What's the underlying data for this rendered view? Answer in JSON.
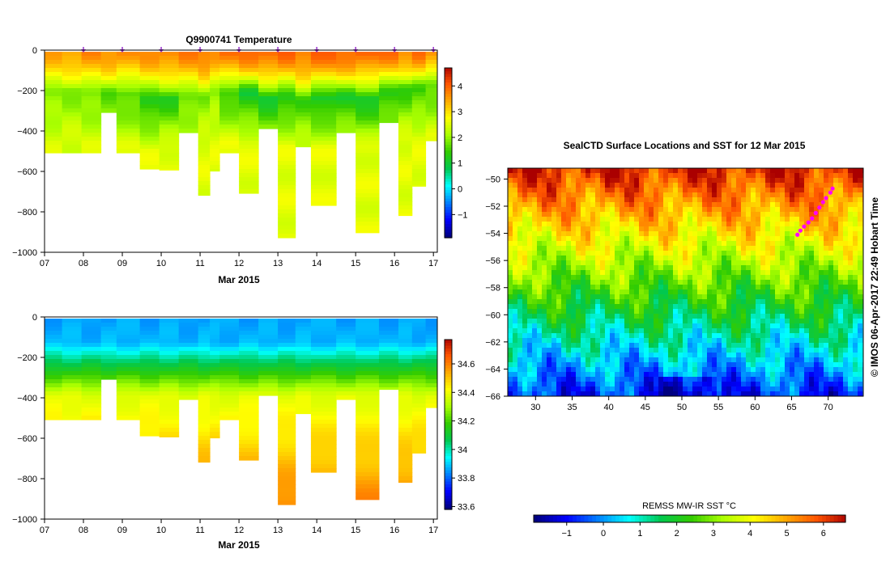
{
  "chart_data": [
    {
      "id": "temperature-section",
      "type": "heatmap",
      "title": "Q9900741  Temperature",
      "xlabel": "Mar 2015",
      "x_tick_labels": [
        "07",
        "08",
        "09",
        "10",
        "11",
        "12",
        "13",
        "14",
        "15",
        "16",
        "17"
      ],
      "xlim": [
        7,
        17.1
      ],
      "ylim": [
        -1000,
        0
      ],
      "y_ticks": [
        0,
        -200,
        -400,
        -600,
        -800,
        -1000
      ],
      "colorbar": {
        "min": -1.9,
        "max": 4.7,
        "ticks": [
          -1,
          0,
          1,
          2,
          3,
          4
        ]
      },
      "colormap": [
        "#00007f",
        "#0000ff",
        "#0080ff",
        "#00ffff",
        "#00c850",
        "#33cc00",
        "#aaff00",
        "#ffff00",
        "#ffaa00",
        "#ff5500",
        "#aa0000"
      ],
      "profile_markers_x": [
        8.0,
        9.0,
        10.0,
        11.0,
        12.0,
        13.0,
        14.0,
        15.0,
        16.0,
        17.0
      ],
      "marker_color": "#9932cc",
      "profiles": [
        {
          "x0": 7.0,
          "x1": 7.45,
          "max_depth": 500,
          "T_surface": 3.4,
          "T_min": 1.8,
          "T_min_depth": 200,
          "T_deep": 2.4
        },
        {
          "x0": 7.45,
          "x1": 7.95,
          "max_depth": 500,
          "T_surface": 3.5,
          "T_min": 1.8,
          "T_min_depth": 190,
          "T_deep": 2.4
        },
        {
          "x0": 7.95,
          "x1": 8.45,
          "max_depth": 500,
          "T_surface": 3.6,
          "T_min": 1.7,
          "T_min_depth": 200,
          "T_deep": 2.4
        },
        {
          "x0": 8.45,
          "x1": 8.85,
          "max_depth": 300,
          "T_surface": 3.6,
          "T_min": 1.6,
          "T_min_depth": 200,
          "T_deep": 2.2
        },
        {
          "x0": 8.85,
          "x1": 9.45,
          "max_depth": 500,
          "T_surface": 3.5,
          "T_min": 1.5,
          "T_min_depth": 210,
          "T_deep": 2.4
        },
        {
          "x0": 9.45,
          "x1": 9.95,
          "max_depth": 580,
          "T_surface": 3.6,
          "T_min": 1.1,
          "T_min_depth": 240,
          "T_deep": 2.5
        },
        {
          "x0": 9.95,
          "x1": 10.45,
          "max_depth": 585,
          "T_surface": 3.7,
          "T_min": 1.2,
          "T_min_depth": 230,
          "T_deep": 2.5
        },
        {
          "x0": 10.45,
          "x1": 10.95,
          "max_depth": 400,
          "T_surface": 3.7,
          "T_min": 1.6,
          "T_min_depth": 220,
          "T_deep": 2.4
        },
        {
          "x0": 10.95,
          "x1": 11.25,
          "max_depth": 710,
          "T_surface": 3.8,
          "T_min": 1.8,
          "T_min_depth": 220,
          "T_deep": 2.5
        },
        {
          "x0": 11.25,
          "x1": 11.5,
          "max_depth": 590,
          "T_surface": 3.5,
          "T_min": 1.9,
          "T_min_depth": 200,
          "T_deep": 2.5
        },
        {
          "x0": 11.5,
          "x1": 12.0,
          "max_depth": 500,
          "T_surface": 3.8,
          "T_min": 1.3,
          "T_min_depth": 200,
          "T_deep": 2.5
        },
        {
          "x0": 12.0,
          "x1": 12.5,
          "max_depth": 700,
          "T_surface": 3.9,
          "T_min": 1.0,
          "T_min_depth": 200,
          "T_deep": 2.5
        },
        {
          "x0": 12.5,
          "x1": 13.0,
          "max_depth": 380,
          "T_surface": 3.9,
          "T_min": 1.0,
          "T_min_depth": 230,
          "T_deep": 2.4
        },
        {
          "x0": 13.0,
          "x1": 13.45,
          "max_depth": 920,
          "T_surface": 3.9,
          "T_min": 1.1,
          "T_min_depth": 220,
          "T_deep": 2.5
        },
        {
          "x0": 13.45,
          "x1": 13.85,
          "max_depth": 470,
          "T_surface": 3.8,
          "T_min": 1.4,
          "T_min_depth": 240,
          "T_deep": 2.4
        },
        {
          "x0": 13.85,
          "x1": 14.5,
          "max_depth": 760,
          "T_surface": 3.9,
          "T_min": 1.0,
          "T_min_depth": 230,
          "T_deep": 2.5
        },
        {
          "x0": 14.5,
          "x1": 15.0,
          "max_depth": 400,
          "T_surface": 3.9,
          "T_min": 1.1,
          "T_min_depth": 220,
          "T_deep": 2.4
        },
        {
          "x0": 15.0,
          "x1": 15.6,
          "max_depth": 895,
          "T_surface": 3.9,
          "T_min": 1.0,
          "T_min_depth": 230,
          "T_deep": 2.5
        },
        {
          "x0": 15.6,
          "x1": 16.1,
          "max_depth": 350,
          "T_surface": 3.8,
          "T_min": 1.2,
          "T_min_depth": 200,
          "T_deep": 2.3
        },
        {
          "x0": 16.1,
          "x1": 16.45,
          "max_depth": 810,
          "T_surface": 3.7,
          "T_min": 1.3,
          "T_min_depth": 180,
          "T_deep": 2.5
        },
        {
          "x0": 16.45,
          "x1": 16.8,
          "max_depth": 665,
          "T_surface": 3.8,
          "T_min": 1.4,
          "T_min_depth": 180,
          "T_deep": 2.5
        },
        {
          "x0": 16.8,
          "x1": 17.1,
          "max_depth": 440,
          "T_surface": 3.6,
          "T_min": 1.5,
          "T_min_depth": 160,
          "T_deep": 2.4
        }
      ]
    },
    {
      "id": "salinity-section",
      "type": "heatmap",
      "title": "",
      "xlabel": "Mar 2015",
      "x_tick_labels": [
        "07",
        "08",
        "09",
        "10",
        "11",
        "12",
        "13",
        "14",
        "15",
        "16",
        "17"
      ],
      "xlim": [
        7,
        17.1
      ],
      "ylim": [
        -1000,
        0
      ],
      "y_ticks": [
        0,
        -200,
        -400,
        -600,
        -800,
        -1000
      ],
      "colorbar": {
        "min": 33.58,
        "max": 34.77,
        "ticks": [
          33.6,
          33.8,
          34,
          34.2,
          34.4,
          34.6
        ],
        "tick_labels": [
          "33.6",
          "33.8",
          "34",
          "34.2",
          "34.4",
          "34.6"
        ]
      },
      "colormap": [
        "#00007f",
        "#0000ff",
        "#0080ff",
        "#00ffff",
        "#00c850",
        "#33cc00",
        "#aaff00",
        "#ffff00",
        "#ffaa00",
        "#ff5500",
        "#aa0000"
      ],
      "profiles_from": "temperature-section",
      "S_surface": 33.85,
      "S_halocline_depth": 300,
      "S_deep_gradient_per_100m": 0.04
    },
    {
      "id": "sst-map",
      "type": "heatmap",
      "title": "SealCTD Surface Locations and SST for 12 Mar 2015",
      "xlim": [
        26.2,
        74.8
      ],
      "ylim": [
        -66,
        -49.2
      ],
      "x_ticks": [
        30,
        35,
        40,
        45,
        50,
        55,
        60,
        65,
        70
      ],
      "y_ticks": [
        -50,
        -52,
        -54,
        -56,
        -58,
        -60,
        -62,
        -64,
        -66
      ],
      "colorbar": {
        "label": "REMSS MW-IR SST °C",
        "min": -1.9,
        "max": 6.6,
        "ticks": [
          -1,
          0,
          1,
          2,
          3,
          4,
          5,
          6
        ]
      },
      "colormap": [
        "#00007f",
        "#0000ff",
        "#0080ff",
        "#00ffff",
        "#00c850",
        "#33cc00",
        "#aaff00",
        "#ffff00",
        "#ffaa00",
        "#ff5500",
        "#aa0000"
      ],
      "track_points": [
        {
          "lon": 65.8,
          "lat": -54.1
        },
        {
          "lon": 66.2,
          "lat": -53.8
        },
        {
          "lon": 66.7,
          "lat": -53.5
        },
        {
          "lon": 67.3,
          "lat": -53.2
        },
        {
          "lon": 67.8,
          "lat": -52.9
        },
        {
          "lon": 68.3,
          "lat": -52.5
        },
        {
          "lon": 68.8,
          "lat": -52.1
        },
        {
          "lon": 69.3,
          "lat": -51.7
        },
        {
          "lon": 69.7,
          "lat": -51.4
        },
        {
          "lon": 70.3,
          "lat": -51.0
        },
        {
          "lon": 70.6,
          "lat": -50.7
        }
      ],
      "track_color": "#ff00ff",
      "credit": "© IMOS 06-Apr-2017 22:49 Hobart Time"
    }
  ]
}
